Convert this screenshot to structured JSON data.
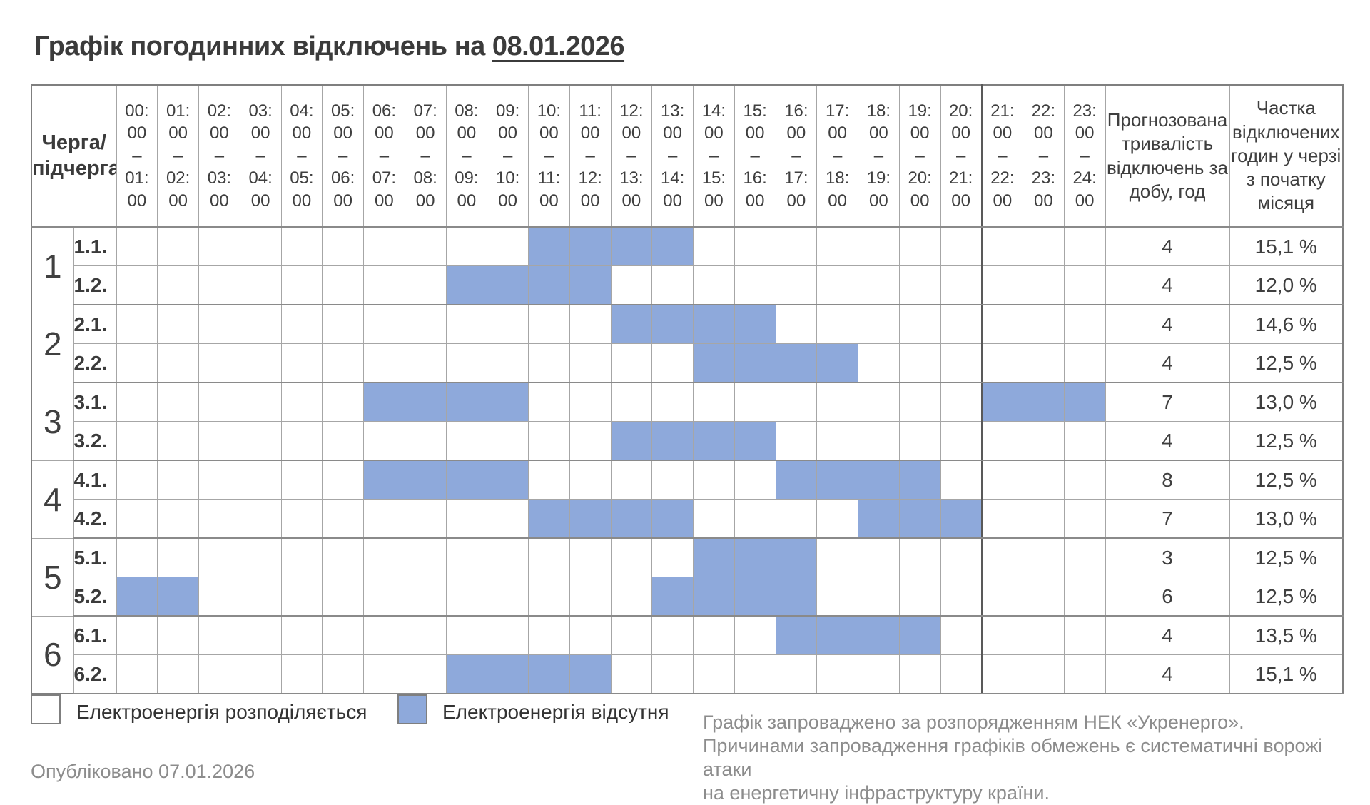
{
  "title": {
    "prefix": "Графік погодинних відключень на ",
    "date": "08.01.2026"
  },
  "colors": {
    "outage_fill": "#8EA9DB",
    "grid_line": "#a6a6a6",
    "dark_divider": "#595959",
    "muted_text": "#8c8c8c"
  },
  "table": {
    "corner_header": "Черга/\nпідчерга",
    "hours": [
      "00:\n00\n–\n01:\n00",
      "01:\n00\n–\n02:\n00",
      "02:\n00\n–\n03:\n00",
      "03:\n00\n–\n04:\n00",
      "04:\n00\n–\n05:\n00",
      "05:\n00\n–\n06:\n00",
      "06:\n00\n–\n07:\n00",
      "07:\n00\n–\n08:\n00",
      "08:\n00\n–\n09:\n00",
      "09:\n00\n–\n10:\n00",
      "10:\n00\n–\n11:\n00",
      "11:\n00\n–\n12:\n00",
      "12:\n00\n–\n13:\n00",
      "13:\n00\n–\n14:\n00",
      "14:\n00\n–\n15:\n00",
      "15:\n00\n–\n16:\n00",
      "16:\n00\n–\n17:\n00",
      "17:\n00\n–\n18:\n00",
      "18:\n00\n–\n19:\n00",
      "19:\n00\n–\n20:\n00",
      "20:\n00\n–\n21:\n00",
      "21:\n00\n–\n22:\n00",
      "22:\n00\n–\n23:\n00",
      "23:\n00\n–\n24:\n00"
    ],
    "duration_header": "Прогнозована\nтривалість\nвідключень за\nдобу, год",
    "share_header": "Частка\nвідключених\nгодин у черзі\nз початку\nмісяця",
    "queues": [
      {
        "number": "1",
        "rows": [
          {
            "label": "1.1.",
            "outage": [
              10,
              11,
              12,
              13
            ],
            "duration": "4",
            "share": "15,1 %"
          },
          {
            "label": "1.2.",
            "outage": [
              8,
              9,
              10,
              11
            ],
            "duration": "4",
            "share": "12,0 %"
          }
        ]
      },
      {
        "number": "2",
        "rows": [
          {
            "label": "2.1.",
            "outage": [
              12,
              13,
              14,
              15
            ],
            "duration": "4",
            "share": "14,6 %"
          },
          {
            "label": "2.2.",
            "outage": [
              14,
              15,
              16,
              17
            ],
            "duration": "4",
            "share": "12,5 %"
          }
        ]
      },
      {
        "number": "3",
        "rows": [
          {
            "label": "3.1.",
            "outage": [
              6,
              7,
              8,
              9,
              21,
              22,
              23
            ],
            "duration": "7",
            "share": "13,0 %"
          },
          {
            "label": "3.2.",
            "outage": [
              12,
              13,
              14,
              15
            ],
            "duration": "4",
            "share": "12,5 %"
          }
        ]
      },
      {
        "number": "4",
        "rows": [
          {
            "label": "4.1.",
            "outage": [
              6,
              7,
              8,
              9,
              16,
              17,
              18,
              19
            ],
            "duration": "8",
            "share": "12,5 %"
          },
          {
            "label": "4.2.",
            "outage": [
              10,
              11,
              12,
              13,
              18,
              19,
              20
            ],
            "duration": "7",
            "share": "13,0 %"
          }
        ]
      },
      {
        "number": "5",
        "rows": [
          {
            "label": "5.1.",
            "outage": [
              14,
              15,
              16
            ],
            "duration": "3",
            "share": "12,5 %"
          },
          {
            "label": "5.2.",
            "outage": [
              0,
              1,
              13,
              14,
              15,
              16
            ],
            "duration": "6",
            "share": "12,5 %"
          }
        ]
      },
      {
        "number": "6",
        "rows": [
          {
            "label": "6.1.",
            "outage": [
              16,
              17,
              18,
              19
            ],
            "duration": "4",
            "share": "13,5 %"
          },
          {
            "label": "6.2.",
            "outage": [
              8,
              9,
              10,
              11
            ],
            "duration": "4",
            "share": "15,1 %"
          }
        ]
      }
    ]
  },
  "legend": {
    "available_label": "Електроенергія розподіляється",
    "outage_label": "Електроенергія відсутня"
  },
  "footer": {
    "published": "Опубліковано 07.01.2026",
    "note": "Графік запроваджено за розпорядженням НЕК «Укренерго».\nПричинами запровадження графіків обмежень є систематичні ворожі атаки\nна енергетичну інфраструктуру країни."
  }
}
